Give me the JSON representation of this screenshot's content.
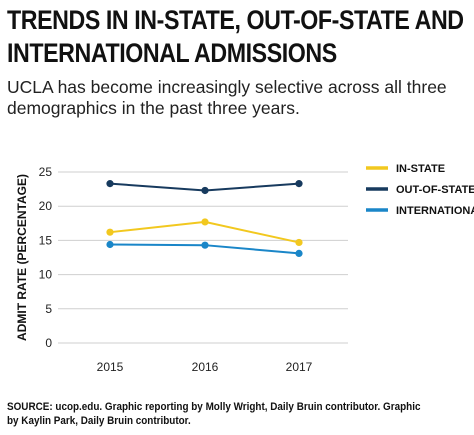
{
  "title_line1": "TRENDS IN IN-STATE, OUT-OF-STATE AND",
  "title_line2": "INTERNATIONAL ADMISSIONS",
  "subtitle": "UCLA has become increasingly selective across all three demographics in the past three years.",
  "source": "SOURCE: ucop.edu. Graphic reporting by Molly Wright, Daily Bruin contributor. Graphic by Kaylin Park, Daily Bruin contributor.",
  "chart_data": {
    "type": "line",
    "x": [
      "2015",
      "2016",
      "2017"
    ],
    "ylabel": "ADMIT RATE (PERCENTAGE)",
    "ylim": [
      0,
      25
    ],
    "yticks": [
      "0",
      "5",
      "10",
      "15",
      "20",
      "25"
    ],
    "grid": "horizontal",
    "legend": "right",
    "series": [
      {
        "name": "IN-STATE",
        "color": "#f2c81f",
        "values": [
          16.2,
          17.7,
          14.7
        ]
      },
      {
        "name": "OUT-OF-STATE",
        "color": "#173a5e",
        "values": [
          23.3,
          22.3,
          23.3
        ]
      },
      {
        "name": "INTERNATIONAL",
        "color": "#1a86c8",
        "values": [
          14.4,
          14.3,
          13.1
        ]
      }
    ]
  }
}
